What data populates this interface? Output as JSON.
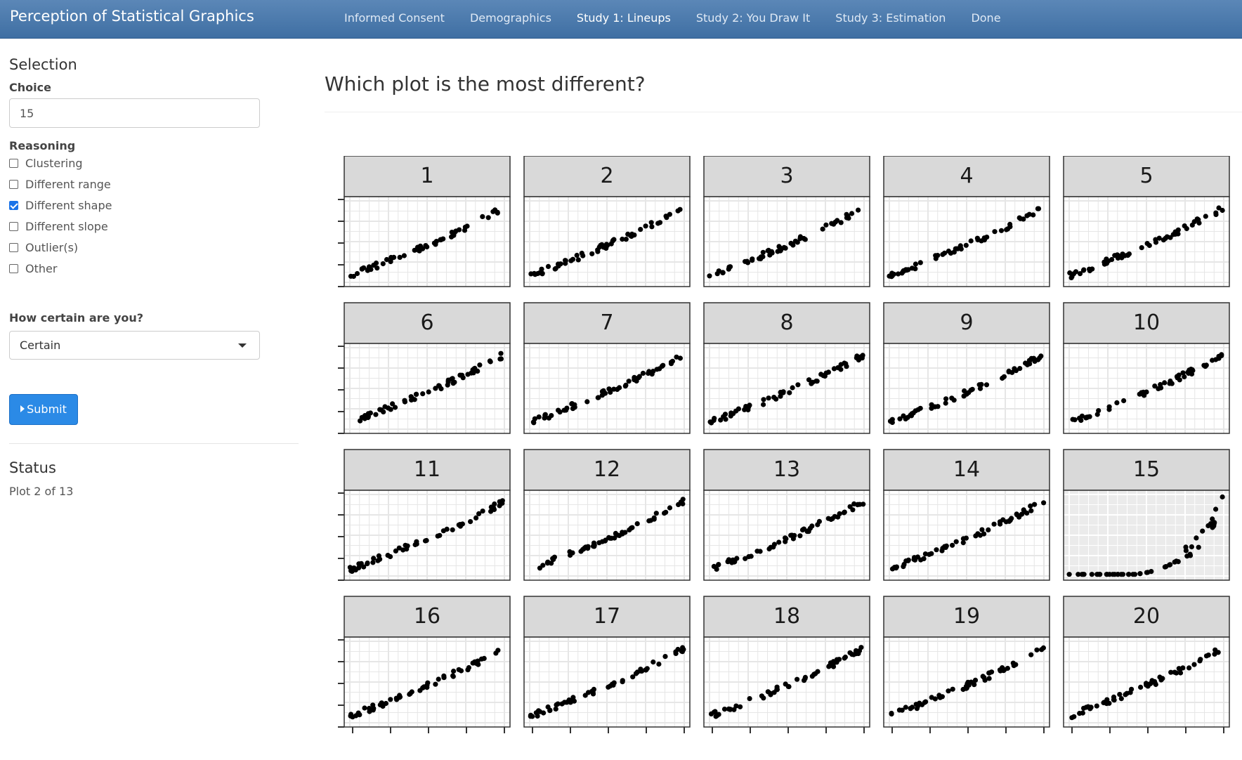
{
  "navbar": {
    "brand": "Perception of Statistical Graphics",
    "items": [
      {
        "label": "Informed Consent",
        "active": false
      },
      {
        "label": "Demographics",
        "active": false
      },
      {
        "label": "Study 1: Lineups",
        "active": true
      },
      {
        "label": "Study 2: You Draw It",
        "active": false
      },
      {
        "label": "Study 3: Estimation",
        "active": false
      },
      {
        "label": "Done",
        "active": false
      }
    ]
  },
  "sidebar": {
    "selection_title": "Selection",
    "choice_label": "Choice",
    "choice_value": "15",
    "reasoning_label": "Reasoning",
    "reasoning_options": [
      {
        "label": "Clustering",
        "checked": false
      },
      {
        "label": "Different range",
        "checked": false
      },
      {
        "label": "Different shape",
        "checked": true
      },
      {
        "label": "Different slope",
        "checked": false
      },
      {
        "label": "Outlier(s)",
        "checked": false
      },
      {
        "label": "Other",
        "checked": false
      }
    ],
    "certainty_label": "How certain are you?",
    "certainty_value": "Certain",
    "submit_label": "Submit",
    "status_title": "Status",
    "status_text": "Plot 2 of 13"
  },
  "main": {
    "question": "Which plot is the most different?",
    "panels": [
      "1",
      "2",
      "3",
      "4",
      "5",
      "6",
      "7",
      "8",
      "9",
      "10",
      "11",
      "12",
      "13",
      "14",
      "15",
      "16",
      "17",
      "18",
      "19",
      "20"
    ],
    "selected_panel": "15"
  },
  "colors": {
    "navbar": "#4a78ab",
    "accent": "#2b8ae6",
    "strip": "#d9d9d9",
    "panel_bg_selected": "#ebebeb",
    "point": "#000000"
  }
}
